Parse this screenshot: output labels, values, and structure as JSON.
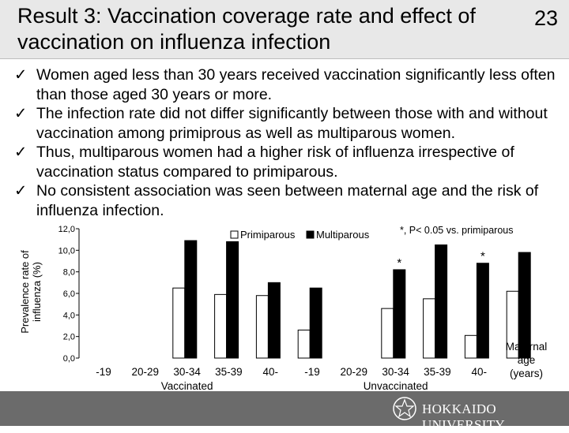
{
  "slide": {
    "title": "Result 3: Vaccination coverage rate and effect of vaccination on influenza infection",
    "page_number": "23",
    "check_glyph": "✓",
    "bullets": [
      "Women aged less than 30 years received vaccination significantly less often than those aged 30 years or more.",
      "The infection rate did not differ significantly between those with and without vaccination among primiprous as well as multiparous women.",
      "Thus, multiparous women had a higher risk of influenza irrespective of vaccination status compared to primiparous.",
      "No consistent association was seen between maternal age and the risk of influenza infection."
    ]
  },
  "footer": {
    "university": "HOKKAIDO UNIVERSITY",
    "logo_icon": "hokkaido-crest-icon"
  },
  "colors": {
    "primiparous_fill": "#ffffff",
    "multiparous_fill": "#000000",
    "title_bg": "#e8e8e8",
    "footer_bg": "#6b6b6b"
  },
  "chart_data": {
    "type": "bar",
    "ylabel_lines": [
      "Prevalence rate of",
      "influenza (%)"
    ],
    "ylim": [
      0,
      12
    ],
    "yticks": [
      "0,0",
      "2,0",
      "4,0",
      "6,0",
      "8,0",
      "10,0",
      "12,0"
    ],
    "categories": [
      "-19",
      "20-29",
      "30-34",
      "35-39",
      "40-",
      "-19",
      "20-29",
      "30-34",
      "35-39",
      "40-"
    ],
    "groups": [
      {
        "label": "Vaccinated",
        "from": 1,
        "to": 3
      },
      {
        "label": "Unvaccinated",
        "from": 6,
        "to": 8
      }
    ],
    "series": [
      {
        "name": "Primiparous",
        "values": [
          null,
          6.5,
          5.9,
          5.8,
          2.6,
          null,
          4.6,
          5.5,
          2.1,
          6.2
        ]
      },
      {
        "name": "Multiparous",
        "values": [
          null,
          10.9,
          10.8,
          7.0,
          6.5,
          null,
          8.2,
          10.5,
          8.8,
          9.8
        ]
      }
    ],
    "significance": [
      {
        "category_index": 2,
        "symbol": "*"
      },
      {
        "category_index": 6,
        "symbol": "*"
      },
      {
        "category_index": 8,
        "symbol": "*"
      }
    ],
    "note": "*, P< 0.05 vs. primiparous",
    "xlabel_lines": [
      "Maternal",
      "age",
      "(years)"
    ]
  }
}
